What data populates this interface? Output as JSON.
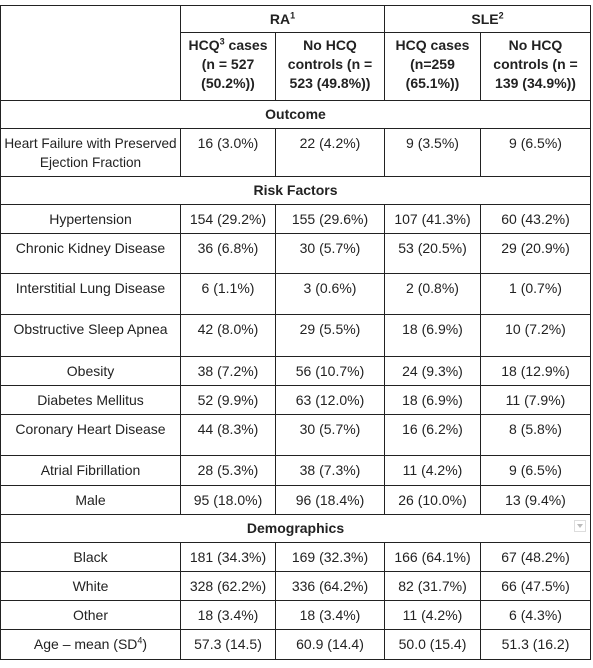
{
  "header": {
    "groups": [
      {
        "text": "RA",
        "sup": "1"
      },
      {
        "text": "SLE",
        "sup": "2"
      }
    ],
    "columns": [
      {
        "text": "HCQ",
        "sup": "3",
        "rest": " cases (n = 527 (50.2%))"
      },
      {
        "text": "No HCQ controls (n = 523 (49.8%))"
      },
      {
        "text": "HCQ cases (n=259 (65.1%))"
      },
      {
        "text": "No HCQ controls (n = 139 (34.9%))"
      }
    ]
  },
  "sections": [
    {
      "title": "Outcome",
      "rows": [
        {
          "label": {
            "text": "Heart Failure with Preserved Ejection Fraction"
          },
          "cells": [
            "16 (3.0%)",
            "22 (4.2%)",
            "9 (3.5%)",
            "9 (6.5%)"
          ]
        }
      ]
    },
    {
      "title": "Risk Factors",
      "rows": [
        {
          "label": {
            "text": "Hypertension"
          },
          "cells": [
            "154 (29.2%)",
            "155 (29.6%)",
            "107 (41.3%)",
            "60 (43.2%)"
          ]
        },
        {
          "label": {
            "text": "Chronic Kidney Disease"
          },
          "cells": [
            "36 (6.8%)",
            "30 (5.7%)",
            "53 (20.5%)",
            "29 (20.9%)"
          ]
        },
        {
          "label": {
            "text": "Interstitial Lung Disease"
          },
          "cells": [
            "6 (1.1%)",
            "3 (0.6%)",
            "2 (0.8%)",
            "1 (0.7%)"
          ]
        },
        {
          "label": {
            "text": "Obstructive Sleep Apnea"
          },
          "cells": [
            "42 (8.0%)",
            "29 (5.5%)",
            "18 (6.9%)",
            "10 (7.2%)"
          ]
        },
        {
          "label": {
            "text": "Obesity"
          },
          "cells": [
            "38 (7.2%)",
            "56 (10.7%)",
            "24 (9.3%)",
            "18 (12.9%)"
          ]
        },
        {
          "label": {
            "text": "Diabetes Mellitus"
          },
          "cells": [
            "52 (9.9%)",
            "63 (12.0%)",
            "18 (6.9%)",
            "11 (7.9%)"
          ]
        },
        {
          "label": {
            "text": "Coronary Heart Disease"
          },
          "cells": [
            "44 (8.3%)",
            "30 (5.7%)",
            "16 (6.2%)",
            "8 (5.8%)"
          ]
        },
        {
          "label": {
            "text": "Atrial Fibrillation"
          },
          "cells": [
            "28 (5.3%)",
            "38 (7.3%)",
            "11 (4.2%)",
            "9 (6.5%)"
          ]
        },
        {
          "label": {
            "text": "Male"
          },
          "cells": [
            "95 (18.0%)",
            "96 (18.4%)",
            "26 (10.0%)",
            "13 (9.4%)"
          ]
        }
      ]
    },
    {
      "title": "Demographics",
      "rows": [
        {
          "label": {
            "text": "Black"
          },
          "cells": [
            "181 (34.3%)",
            "169 (32.3%)",
            "166 (64.1%)",
            "67 (48.2%)"
          ]
        },
        {
          "label": {
            "text": "White"
          },
          "cells": [
            "328 (62.2%)",
            "336 (64.2%)",
            "82 (31.7%)",
            "66 (47.5%)"
          ]
        },
        {
          "label": {
            "text": "Other"
          },
          "cells": [
            "18 (3.4%)",
            "18 (3.4%)",
            "11 (4.2%)",
            "6 (4.3%)"
          ]
        },
        {
          "label": {
            "text": "Age – mean (SD",
            "sup": "4",
            "rest": ")"
          },
          "cells": [
            "57.3 (14.5)",
            "60.9 (14.4)",
            "50.0 (15.4)",
            "51.3 (16.2)"
          ]
        }
      ]
    }
  ]
}
